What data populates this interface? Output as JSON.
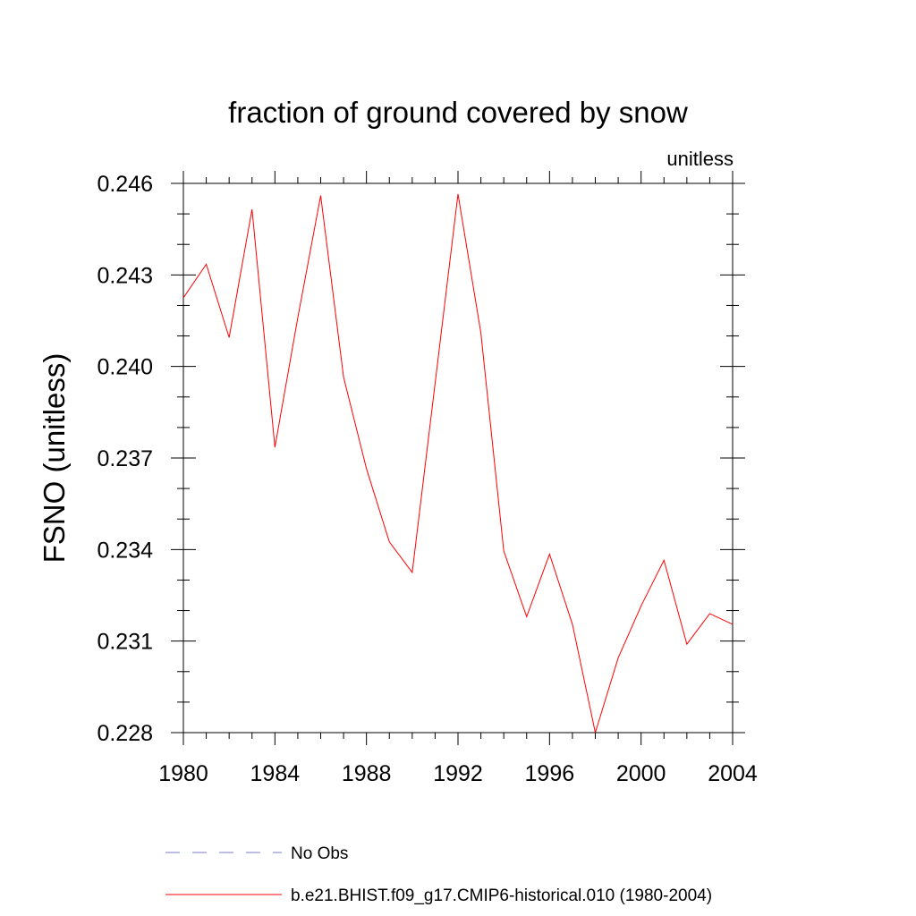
{
  "chart_data": {
    "type": "line",
    "title": "fraction of ground covered by snow",
    "units_label": "unitless",
    "xlabel": "",
    "ylabel": "FSNO  (unitless)",
    "xlim": [
      1980,
      2004
    ],
    "ylim": [
      0.228,
      0.246
    ],
    "x_ticks": [
      1980,
      1984,
      1988,
      1992,
      1996,
      2000,
      2004
    ],
    "y_ticks": [
      "0.228",
      "0.231",
      "0.234",
      "0.237",
      "0.240",
      "0.243",
      "0.246"
    ],
    "grid": false,
    "legend_position": "bottom",
    "series": [
      {
        "name": "b.e21.BHIST.f09_g17.CMIP6-historical.010 (1980-2004)",
        "color": "#ff0000",
        "style": "solid",
        "x": [
          1980,
          1981,
          1982,
          1983,
          1984,
          1985,
          1986,
          1987,
          1988,
          1989,
          1990,
          1991,
          1992,
          1993,
          1994,
          1995,
          1996,
          1997,
          1998,
          1999,
          2000,
          2001,
          2002,
          2003,
          2004
        ],
        "y": [
          0.24225,
          0.24335,
          0.24095,
          0.24515,
          0.23735,
          0.2416,
          0.2456,
          0.23965,
          0.23665,
          0.23425,
          0.23325,
          0.23945,
          0.24565,
          0.2411,
          0.23395,
          0.2318,
          0.23385,
          0.23155,
          0.228,
          0.23045,
          0.23215,
          0.23365,
          0.2309,
          0.2319,
          0.23155
        ]
      }
    ],
    "legend": [
      {
        "name": "No Obs",
        "color": "#7b7bc8",
        "style": "dashed"
      },
      {
        "name": "b.e21.BHIST.f09_g17.CMIP6-historical.010 (1980-2004)",
        "color": "#ff0000",
        "style": "solid"
      }
    ]
  }
}
